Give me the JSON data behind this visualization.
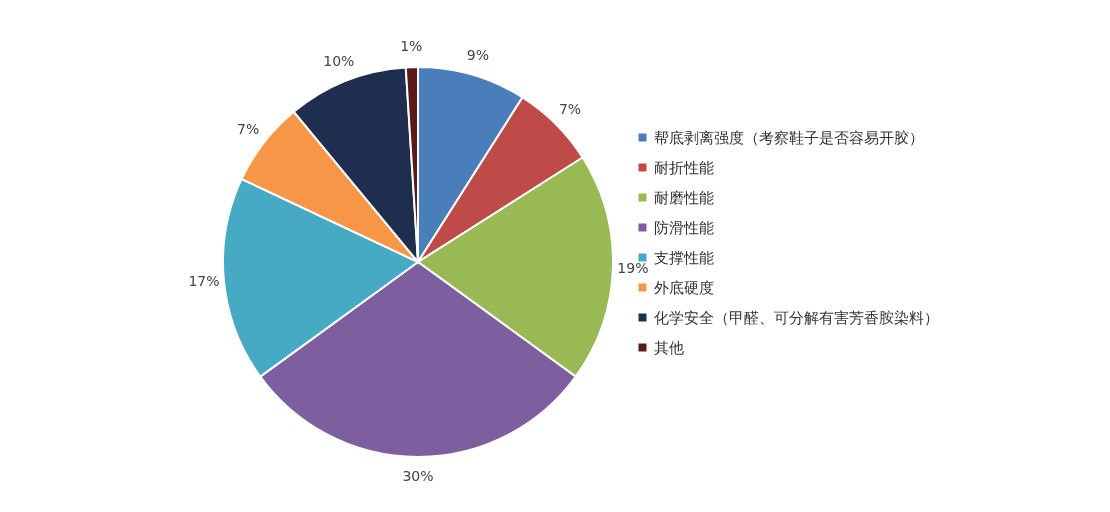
{
  "chart_data": {
    "type": "pie",
    "categories": [
      "帮底剥离强度（考察鞋子是否容易开胶）",
      "耐折性能",
      "耐磨性能",
      "防滑性能",
      "支撑性能",
      "外底硬度",
      "化学安全（甲醛、可分解有害芳香胺染料）",
      "其他"
    ],
    "values": [
      9,
      7,
      19,
      30,
      17,
      7,
      10,
      1
    ],
    "value_labels": [
      "9%",
      "7%",
      "19%",
      "30%",
      "17%",
      "7%",
      "10%",
      "1%"
    ],
    "colors": [
      "#4a7ebb",
      "#be4b48",
      "#98b954",
      "#7d5fa0",
      "#46aac5",
      "#f79646",
      "#1f2d4e",
      "#5a1a1a"
    ],
    "legend": "right"
  }
}
